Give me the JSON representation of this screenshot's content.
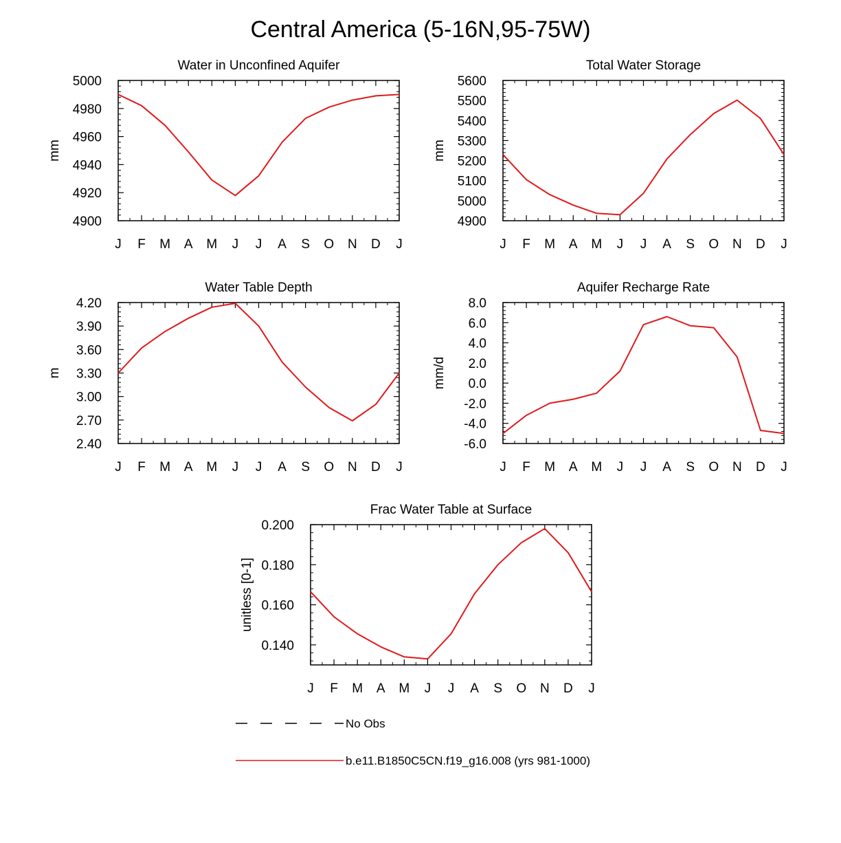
{
  "figure_title": "Central America (5-16N,95-75W)",
  "series_color": "#e0191b",
  "obs_color": "#000000",
  "legend": [
    {
      "label": "No Obs",
      "style": "dashed",
      "color": "#000000"
    },
    {
      "label": "b.e11.B1850C5CN.f19_g16.008 (yrs 981-1000)",
      "style": "solid",
      "color": "#e0191b"
    }
  ],
  "chart_data": [
    {
      "type": "line",
      "title": "Water in Unconfined Aquifer",
      "ylabel": "mm",
      "xlabel": "",
      "categories": [
        "J",
        "F",
        "M",
        "A",
        "M",
        "J",
        "J",
        "A",
        "S",
        "O",
        "N",
        "D",
        "J"
      ],
      "ylim": [
        4900,
        5000
      ],
      "yticks": [
        4900,
        4920,
        4940,
        4960,
        4980,
        5000
      ],
      "ytick_labels": [
        "4900",
        "4920",
        "4940",
        "4960",
        "4980",
        "5000"
      ],
      "series": [
        {
          "name": "b.e11.B1850C5CN.f19_g16.008 (yrs 981-1000)",
          "values": [
            4990,
            4982,
            4968,
            4949,
            4929,
            4918,
            4932,
            4956,
            4973,
            4981,
            4986,
            4989,
            4990
          ]
        }
      ]
    },
    {
      "type": "line",
      "title": "Total Water Storage",
      "ylabel": "mm",
      "xlabel": "",
      "categories": [
        "J",
        "F",
        "M",
        "A",
        "M",
        "J",
        "J",
        "A",
        "S",
        "O",
        "N",
        "D",
        "J"
      ],
      "ylim": [
        4900,
        5600
      ],
      "yticks": [
        4900,
        5000,
        5100,
        5200,
        5300,
        5400,
        5500,
        5600
      ],
      "ytick_labels": [
        "4900",
        "5000",
        "5100",
        "5200",
        "5300",
        "5400",
        "5500",
        "5600"
      ],
      "series": [
        {
          "name": "b.e11.B1850C5CN.f19_g16.008 (yrs 981-1000)",
          "values": [
            5230,
            5105,
            5030,
            4978,
            4937,
            4930,
            5037,
            5208,
            5330,
            5435,
            5502,
            5410,
            5230
          ]
        }
      ]
    },
    {
      "type": "line",
      "title": "Water Table Depth",
      "ylabel": "m",
      "xlabel": "",
      "categories": [
        "J",
        "F",
        "M",
        "A",
        "M",
        "J",
        "J",
        "A",
        "S",
        "O",
        "N",
        "D",
        "J"
      ],
      "ylim": [
        2.4,
        4.2
      ],
      "yticks": [
        2.4,
        2.7,
        3.0,
        3.3,
        3.6,
        3.9,
        4.2
      ],
      "ytick_labels": [
        "2.40",
        "2.70",
        "3.00",
        "3.30",
        "3.60",
        "3.90",
        "4.20"
      ],
      "series": [
        {
          "name": "b.e11.B1850C5CN.f19_g16.008 (yrs 981-1000)",
          "values": [
            3.3,
            3.62,
            3.83,
            4.0,
            4.14,
            4.19,
            3.9,
            3.44,
            3.12,
            2.86,
            2.69,
            2.9,
            3.3
          ]
        }
      ]
    },
    {
      "type": "line",
      "title": "Aquifer Recharge Rate",
      "ylabel": "mm/d",
      "xlabel": "",
      "categories": [
        "J",
        "F",
        "M",
        "A",
        "M",
        "J",
        "J",
        "A",
        "S",
        "O",
        "N",
        "D",
        "J"
      ],
      "ylim": [
        -6.0,
        8.0
      ],
      "yticks": [
        -6,
        -4,
        -2,
        0,
        2,
        4,
        6,
        8
      ],
      "ytick_labels": [
        "-6.0",
        "-4.0",
        "-2.0",
        "0.0",
        "2.0",
        "4.0",
        "6.0",
        "8.0"
      ],
      "series": [
        {
          "name": "b.e11.B1850C5CN.f19_g16.008 (yrs 981-1000)",
          "values": [
            -5.0,
            -3.2,
            -2.0,
            -1.6,
            -1.0,
            1.2,
            5.8,
            6.6,
            5.7,
            5.5,
            2.6,
            -4.7,
            -5.0
          ]
        }
      ]
    },
    {
      "type": "line",
      "title": "Frac Water Table at Surface",
      "ylabel": "unitless [0-1]",
      "xlabel": "",
      "categories": [
        "J",
        "F",
        "M",
        "A",
        "M",
        "J",
        "J",
        "A",
        "S",
        "O",
        "N",
        "D",
        "J"
      ],
      "ylim": [
        0.13,
        0.2
      ],
      "yticks": [
        0.14,
        0.16,
        0.18,
        0.2
      ],
      "ytick_labels": [
        "0.140",
        "0.160",
        "0.180",
        "0.200"
      ],
      "series": [
        {
          "name": "b.e11.B1850C5CN.f19_g16.008 (yrs 981-1000)",
          "values": [
            0.1665,
            0.154,
            0.1455,
            0.139,
            0.134,
            0.133,
            0.1455,
            0.1655,
            0.18,
            0.191,
            0.198,
            0.186,
            0.1665
          ]
        }
      ]
    }
  ]
}
